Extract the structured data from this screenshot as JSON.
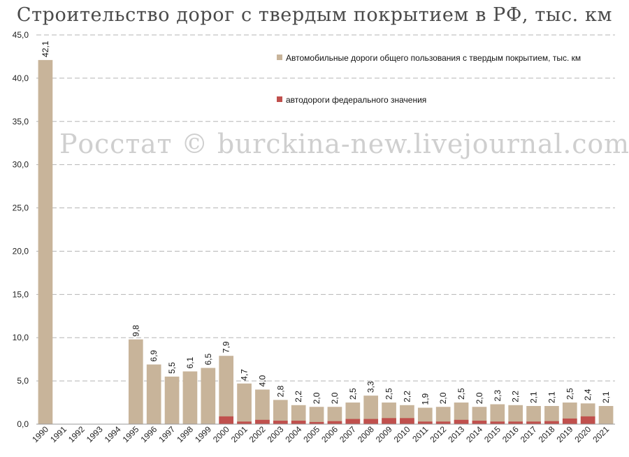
{
  "chart_data": {
    "type": "bar",
    "title": "Строительство дорог с твердым покрытием в РФ, тыс. км",
    "watermark": "Росстат © burckina-new.livejournal.com",
    "xlabel": "",
    "ylabel": "",
    "ylim": [
      0,
      45
    ],
    "yticks": [
      "0,0",
      "5,0",
      "10,0",
      "15,0",
      "20,0",
      "25,0",
      "30,0",
      "35,0",
      "40,0",
      "45,0"
    ],
    "grid": true,
    "legend_position": "top-right",
    "categories": [
      "1990",
      "1991",
      "1992",
      "1993",
      "1994",
      "1995",
      "1996",
      "1997",
      "1998",
      "1999",
      "2000",
      "2001",
      "2002",
      "2003",
      "2004",
      "2005",
      "2006",
      "2007",
      "2008",
      "2009",
      "2010",
      "2011",
      "2012",
      "2013",
      "2014",
      "2015",
      "2016",
      "2017",
      "2018",
      "2019",
      "2020",
      "2021"
    ],
    "series": [
      {
        "name": "Автомобильные дороги общего пользования с твердым покрытием, тыс. км",
        "color": "#c8b49a",
        "values": [
          42.1,
          null,
          null,
          null,
          null,
          9.8,
          6.9,
          5.5,
          6.1,
          6.5,
          7.9,
          4.7,
          4.0,
          2.8,
          2.2,
          2.0,
          2.0,
          2.5,
          3.3,
          2.5,
          2.2,
          1.9,
          2.0,
          2.5,
          2.0,
          2.3,
          2.2,
          2.1,
          2.1,
          2.5,
          2.4,
          2.1
        ],
        "labels": [
          "42,1",
          "",
          "",
          "",
          "",
          "9,8",
          "6,9",
          "5,5",
          "6,1",
          "6,5",
          "7,9",
          "4,7",
          "4,0",
          "2,8",
          "2,2",
          "2,0",
          "2,0",
          "2,5",
          "3,3",
          "2,5",
          "2,2",
          "1,9",
          "2,0",
          "2,5",
          "2,0",
          "2,3",
          "2,2",
          "2,1",
          "2,1",
          "2,5",
          "2,4",
          "2,1"
        ]
      },
      {
        "name": "автодороги федерального значения",
        "color": "#c0504d",
        "values": [
          null,
          null,
          null,
          null,
          null,
          null,
          null,
          null,
          null,
          null,
          0.9,
          0.3,
          0.5,
          0.4,
          0.4,
          0.25,
          0.35,
          0.6,
          0.6,
          0.7,
          0.7,
          0.3,
          0.3,
          0.5,
          0.4,
          0.3,
          0.3,
          0.3,
          0.35,
          0.65,
          0.9,
          null
        ]
      }
    ]
  }
}
